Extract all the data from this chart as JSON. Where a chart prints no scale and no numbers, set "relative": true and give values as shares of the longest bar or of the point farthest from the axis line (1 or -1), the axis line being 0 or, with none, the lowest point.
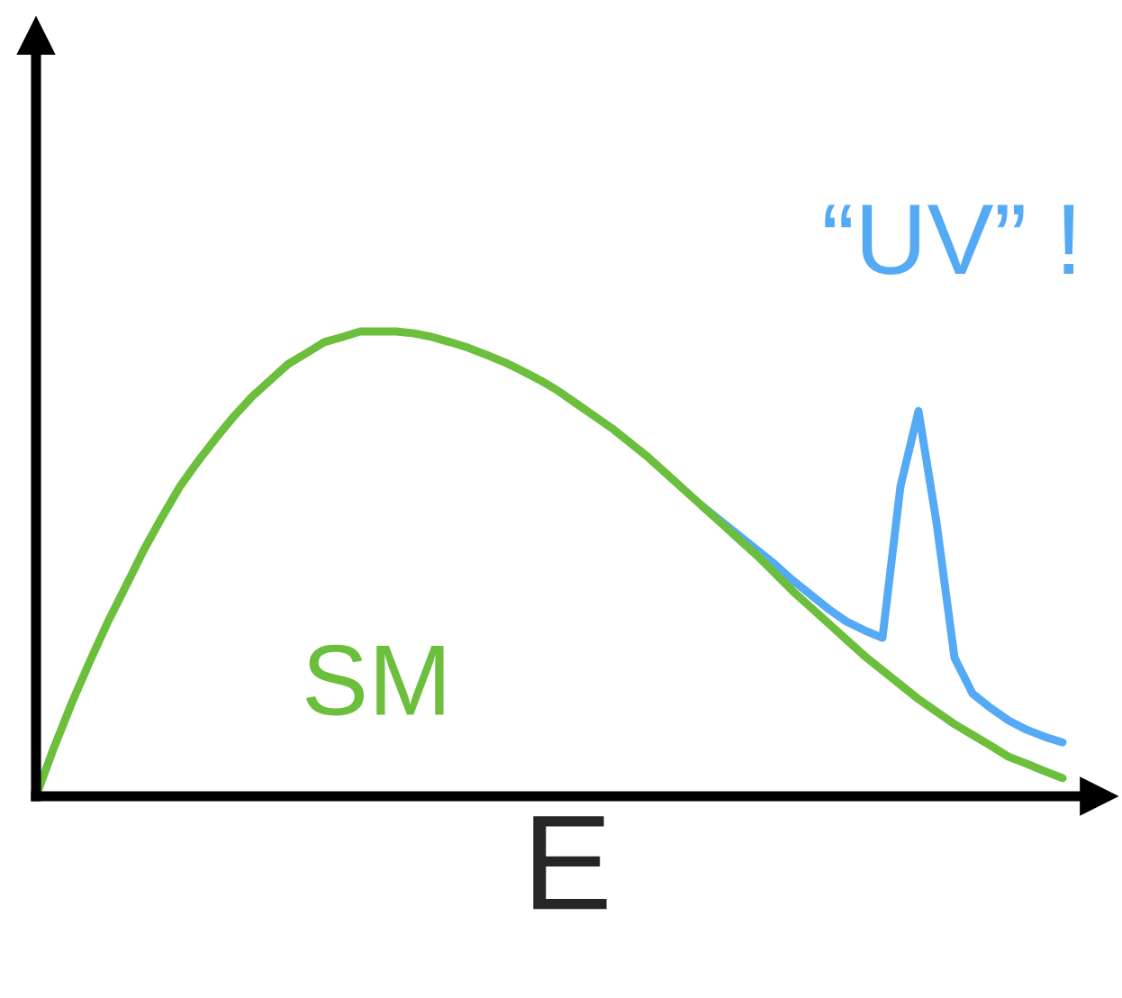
{
  "chart_data": {
    "type": "line",
    "relative": true,
    "xlabel": "E",
    "marker": "none",
    "line_style": "solid",
    "categories": [
      null,
      null,
      null,
      null,
      null,
      null,
      null,
      null,
      null,
      null,
      null,
      null,
      null,
      null,
      null,
      null,
      null,
      null,
      null,
      null,
      null,
      null,
      null,
      null,
      null,
      null,
      null,
      null,
      null,
      null,
      null,
      null,
      null,
      null,
      null,
      null,
      null,
      null,
      null,
      null,
      null,
      null,
      null,
      null,
      null,
      null,
      null,
      null,
      null,
      null,
      null,
      null,
      null,
      null,
      null,
      null,
      null,
      null
    ],
    "series": [
      {
        "name": "“UV” !",
        "color": "#55aaf5",
        "values": [
          null,
          null,
          null,
          null,
          null,
          null,
          null,
          null,
          null,
          null,
          null,
          null,
          null,
          null,
          null,
          null,
          null,
          null,
          null,
          null,
          null,
          null,
          null,
          null,
          null,
          null,
          null,
          null,
          null,
          null,
          null,
          null,
          null,
          null,
          null,
          null,
          null,
          0.624,
          0.593,
          0.562,
          0.531,
          0.5,
          0.465,
          0.434,
          0.403,
          0.376,
          0.357,
          0.341,
          0.667,
          0.829,
          0.589,
          0.298,
          0.221,
          0.19,
          0.163,
          0.143,
          0.128,
          0.116
        ]
      },
      {
        "name": "SM",
        "color": "#6cbf3c",
        "values": [
          0,
          0.105,
          0.202,
          0.291,
          0.376,
          0.453,
          0.531,
          0.601,
          0.667,
          0.721,
          0.771,
          0.818,
          0.86,
          0.895,
          0.93,
          0.953,
          0.977,
          0.988,
          1,
          1,
          1,
          0.996,
          0.988,
          0.977,
          0.965,
          0.95,
          0.934,
          0.915,
          0.895,
          0.872,
          0.845,
          0.818,
          0.791,
          0.76,
          0.729,
          0.694,
          0.659,
          0.624,
          0.589,
          0.554,
          0.519,
          0.481,
          0.442,
          0.407,
          0.372,
          0.337,
          0.302,
          0.271,
          0.24,
          0.209,
          0.182,
          0.155,
          0.132,
          0.109,
          0.085,
          0.07,
          0.054,
          0.039
        ]
      }
    ]
  }
}
